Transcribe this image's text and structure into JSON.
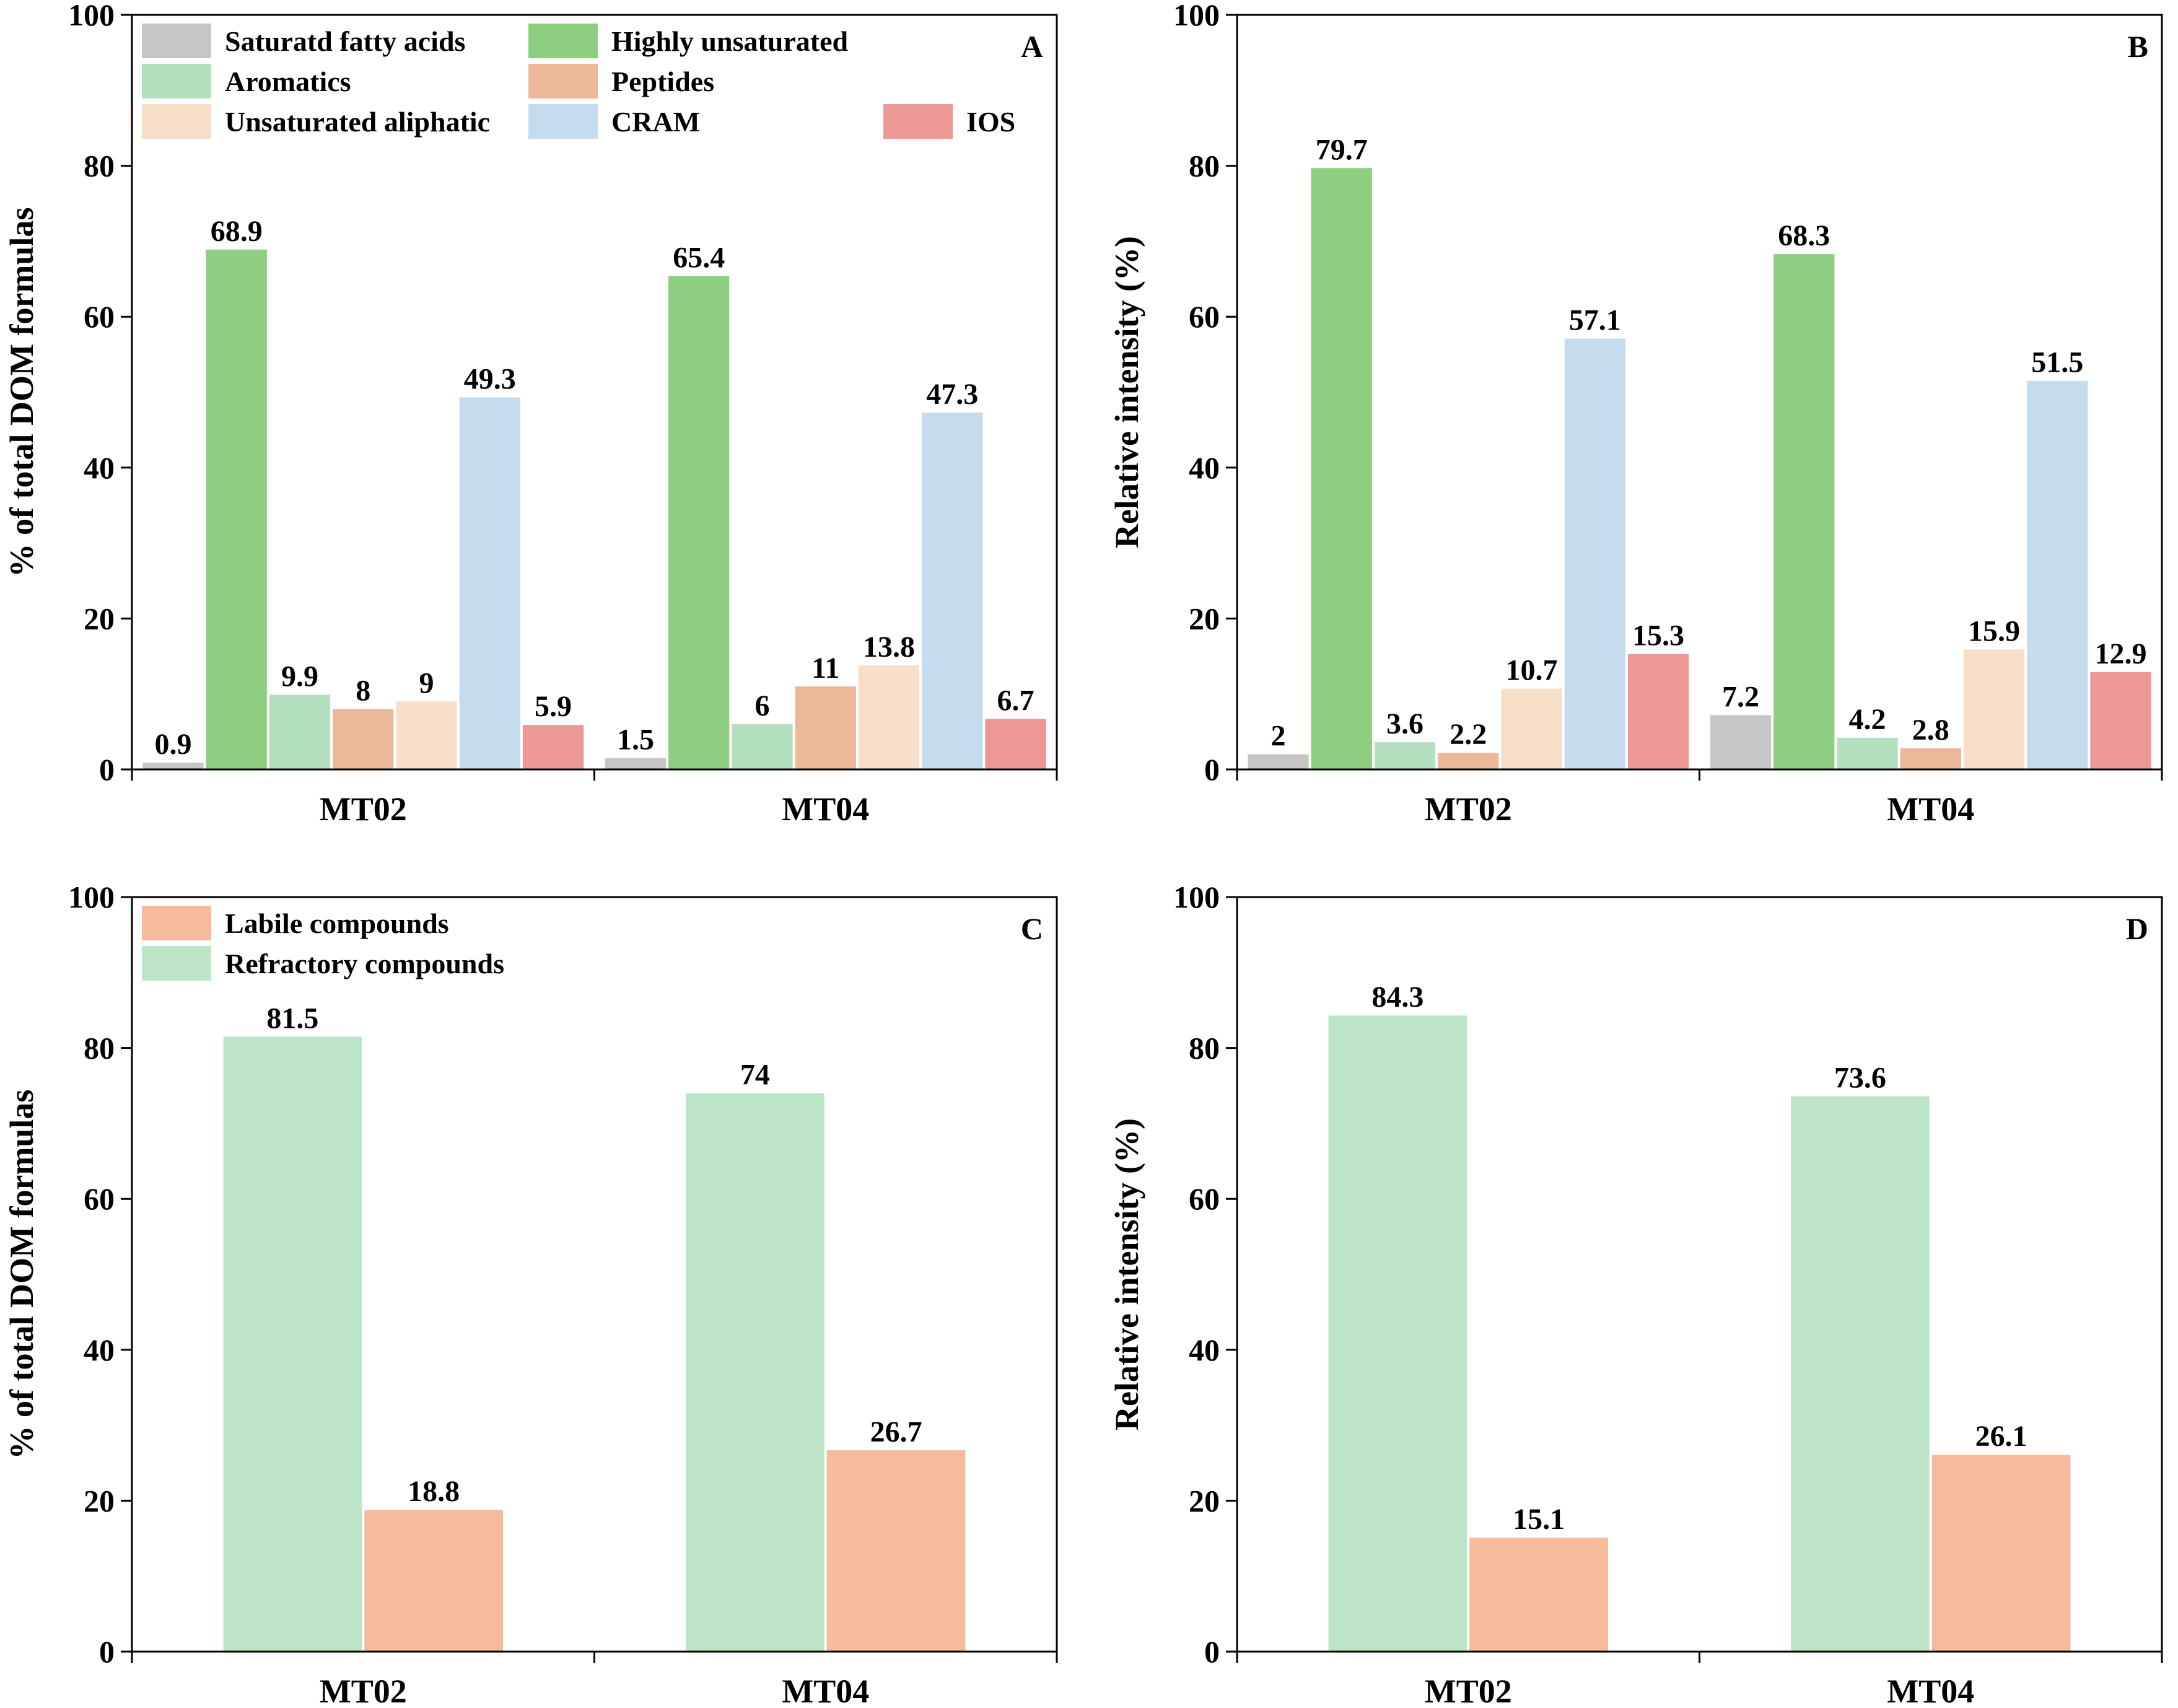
{
  "chart_data": [
    {
      "panel": "A",
      "type": "bar",
      "ylabel": "% of total DOM formulas",
      "ylim": [
        0,
        100
      ],
      "yticks": [
        0,
        20,
        40,
        60,
        80,
        100
      ],
      "categories": [
        "MT02",
        "MT04"
      ],
      "legend_columns": 3,
      "series": [
        {
          "name": "Saturatd fatty acids",
          "color": "#c6c6c6",
          "values": [
            0.9,
            1.5
          ],
          "labels": [
            "0.9",
            "1.5"
          ]
        },
        {
          "name": "Highly unsaturated",
          "color": "#8dce80",
          "values": [
            68.9,
            65.4
          ],
          "labels": [
            "68.9",
            "65.4"
          ]
        },
        {
          "name": "Aromatics",
          "color": "#b5e0c0",
          "values": [
            9.9,
            6
          ],
          "labels": [
            "9.9",
            "6"
          ]
        },
        {
          "name": "Peptides",
          "color": "#ebb899",
          "values": [
            8,
            11
          ],
          "labels": [
            "8",
            "11"
          ]
        },
        {
          "name": "Unsaturated aliphatic",
          "color": "#f6dec8",
          "values": [
            9,
            13.8
          ],
          "labels": [
            "9",
            "13.8"
          ]
        },
        {
          "name": "CRAM",
          "color": "#c5dcef",
          "values": [
            49.3,
            47.3
          ],
          "labels": [
            "49.3",
            "47.3"
          ]
        },
        {
          "name": "IOS",
          "color": "#ec9995",
          "values": [
            5.9,
            6.7
          ],
          "labels": [
            "5.9",
            "6.7"
          ]
        }
      ]
    },
    {
      "panel": "B",
      "type": "bar",
      "ylabel": "Relative intensity (%)",
      "ylim": [
        0,
        100
      ],
      "yticks": [
        0,
        20,
        40,
        60,
        80,
        100
      ],
      "categories": [
        "MT02",
        "MT04"
      ],
      "series": [
        {
          "name": "Saturatd fatty acids",
          "color": "#c6c6c6",
          "values": [
            2,
            7.2
          ],
          "labels": [
            "2",
            "7.2"
          ]
        },
        {
          "name": "Highly unsaturated",
          "color": "#8dce80",
          "values": [
            79.7,
            68.3
          ],
          "labels": [
            "79.7",
            "68.3"
          ]
        },
        {
          "name": "Aromatics",
          "color": "#b5e0c0",
          "values": [
            3.6,
            4.2
          ],
          "labels": [
            "3.6",
            "4.2"
          ]
        },
        {
          "name": "Peptides",
          "color": "#ebb899",
          "values": [
            2.2,
            2.8
          ],
          "labels": [
            "2.2",
            "2.8"
          ]
        },
        {
          "name": "Unsaturated aliphatic",
          "color": "#f6dec8",
          "values": [
            10.7,
            15.9
          ],
          "labels": [
            "10.7",
            "15.9"
          ]
        },
        {
          "name": "CRAM",
          "color": "#c5dcef",
          "values": [
            57.1,
            51.5
          ],
          "labels": [
            "57.1",
            "51.5"
          ]
        },
        {
          "name": "IOS",
          "color": "#ec9995",
          "values": [
            15.3,
            12.9
          ],
          "labels": [
            "15.3",
            "12.9"
          ]
        }
      ]
    },
    {
      "panel": "C",
      "type": "bar",
      "ylabel": "% of total DOM formulas",
      "ylim": [
        0,
        100
      ],
      "yticks": [
        0,
        20,
        40,
        60,
        80,
        100
      ],
      "categories": [
        "MT02",
        "MT04"
      ],
      "legend_columns": 1,
      "legend_order": [
        1,
        0
      ],
      "series": [
        {
          "name": "Refractory compounds",
          "color": "#bde6c8",
          "values": [
            81.5,
            74
          ],
          "labels": [
            "81.5",
            "74"
          ]
        },
        {
          "name": "Labile compounds",
          "color": "#f6bb9b",
          "values": [
            18.8,
            26.7
          ],
          "labels": [
            "18.8",
            "26.7"
          ]
        }
      ]
    },
    {
      "panel": "D",
      "type": "bar",
      "ylabel": "Relative intensity (%)",
      "ylim": [
        0,
        100
      ],
      "yticks": [
        0,
        20,
        40,
        60,
        80,
        100
      ],
      "categories": [
        "MT02",
        "MT04"
      ],
      "series": [
        {
          "name": "Refractory compounds",
          "color": "#bde6c8",
          "values": [
            84.3,
            73.6
          ],
          "labels": [
            "84.3",
            "73.6"
          ]
        },
        {
          "name": "Labile compounds",
          "color": "#f6bb9b",
          "values": [
            15.1,
            26.1
          ],
          "labels": [
            "15.1",
            "26.1"
          ]
        }
      ]
    }
  ]
}
